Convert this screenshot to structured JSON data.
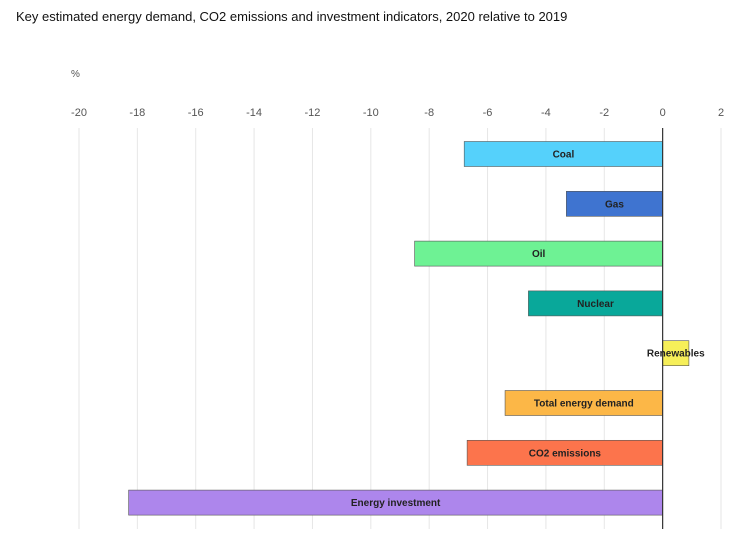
{
  "chart_data": {
    "type": "bar",
    "orientation": "horizontal",
    "title": "Key estimated energy demand, CO2 emissions and investment indicators, 2020 relative to 2019",
    "unit": "%",
    "xlim": [
      -20,
      2
    ],
    "ticks": [
      "-20",
      "-18",
      "-16",
      "-14",
      "-12",
      "-10",
      "-8",
      "-6",
      "-4",
      "-2",
      "0",
      "2"
    ],
    "grid": true,
    "categories": [
      "Coal",
      "Gas",
      "Oil",
      "Nuclear",
      "Renewables",
      "Total energy demand",
      "CO2 emissions",
      "Energy investment"
    ],
    "values": [
      -6.8,
      -3.3,
      -8.5,
      -4.6,
      0.9,
      -5.4,
      -6.7,
      -18.3
    ],
    "colors": [
      "#55d1fb",
      "#3f74d0",
      "#6ef294",
      "#09a89a",
      "#f6ef59",
      "#fcb747",
      "#fc744c",
      "#ad86ec"
    ]
  }
}
